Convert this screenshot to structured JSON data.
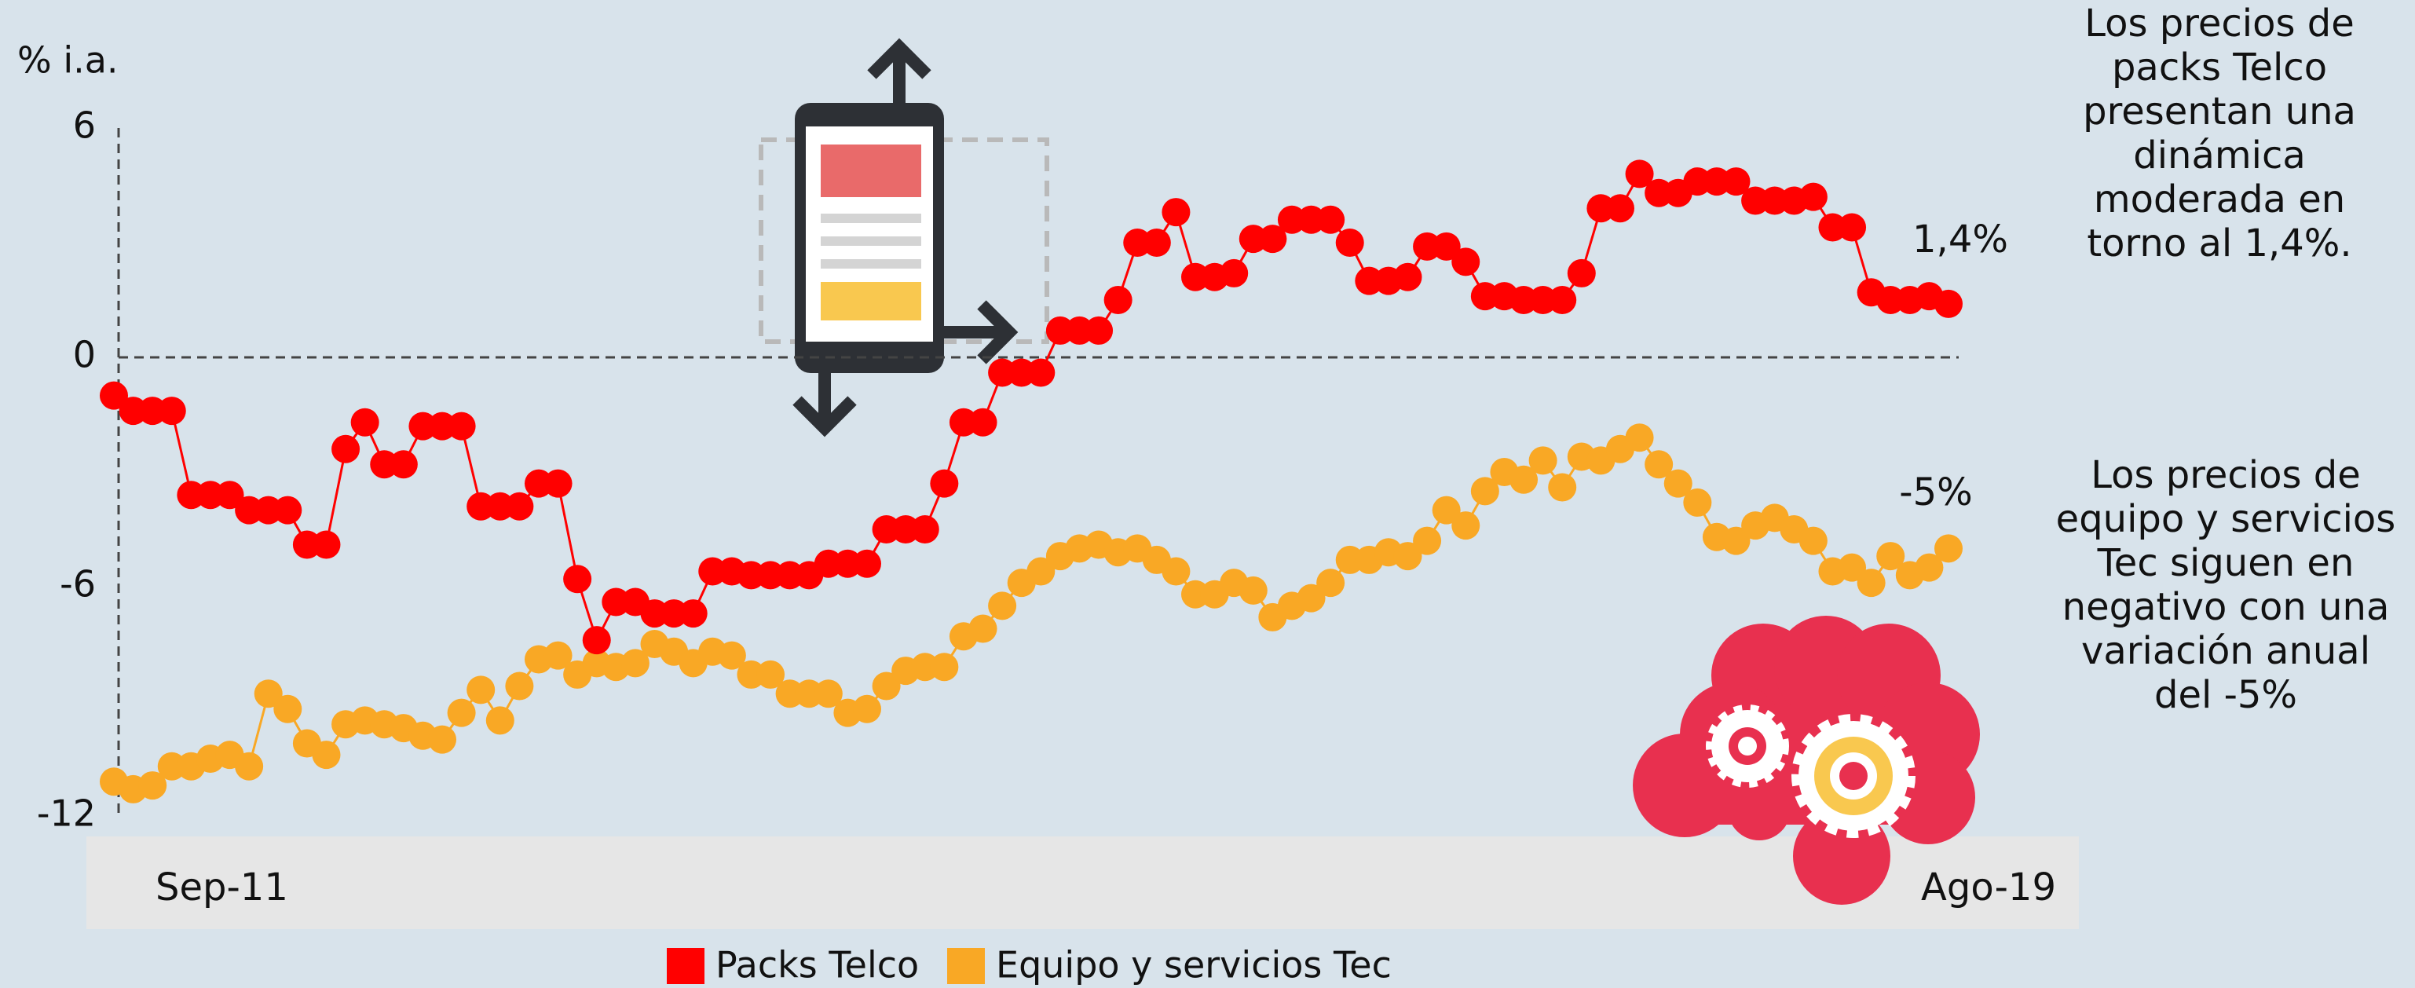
{
  "chart_data": {
    "type": "line",
    "y_axis_label": "% i.a.",
    "categories": [
      "Sep-11",
      null,
      null,
      null,
      null,
      null,
      null,
      null,
      null,
      null,
      null,
      null,
      null,
      null,
      null,
      null,
      null,
      null,
      null,
      null,
      null,
      null,
      null,
      null,
      null,
      null,
      null,
      null,
      null,
      null,
      null,
      null,
      null,
      null,
      null,
      null,
      null,
      null,
      null,
      null,
      null,
      null,
      null,
      null,
      null,
      null,
      null,
      null,
      null,
      null,
      null,
      null,
      null,
      null,
      null,
      null,
      null,
      null,
      null,
      null,
      null,
      null,
      null,
      null,
      null,
      null,
      null,
      null,
      null,
      null,
      null,
      null,
      null,
      null,
      null,
      null,
      null,
      null,
      null,
      null,
      null,
      null,
      null,
      null,
      null,
      null,
      null,
      null,
      null,
      null,
      null,
      null,
      null,
      null,
      null,
      "Ago-19"
    ],
    "series": [
      {
        "name": "Packs Telco",
        "color": "#ff0000",
        "values": [
          -1.0,
          -1.4,
          -1.4,
          -1.4,
          -3.6,
          -3.6,
          -3.6,
          -4.0,
          -4.0,
          -4.0,
          -4.9,
          -4.9,
          -2.4,
          -1.7,
          -2.8,
          -2.8,
          -1.8,
          -1.8,
          -1.8,
          -3.9,
          -3.9,
          -3.9,
          -3.3,
          -3.3,
          -5.8,
          -7.4,
          -6.4,
          -6.4,
          -6.7,
          -6.7,
          -6.7,
          -5.6,
          -5.6,
          -5.7,
          -5.7,
          -5.7,
          -5.7,
          -5.4,
          -5.4,
          -5.4,
          -4.5,
          -4.5,
          -4.5,
          -3.3,
          -1.7,
          -1.7,
          -0.4,
          -0.4,
          -0.4,
          0.7,
          0.7,
          0.7,
          1.5,
          3.0,
          3.0,
          3.8,
          2.1,
          2.1,
          2.2,
          3.1,
          3.1,
          3.6,
          3.6,
          3.6,
          3.0,
          2.0,
          2.0,
          2.1,
          2.9,
          2.9,
          2.5,
          1.6,
          1.6,
          1.5,
          1.5,
          1.5,
          2.2,
          3.9,
          3.9,
          4.8,
          4.3,
          4.3,
          4.6,
          4.6,
          4.6,
          4.1,
          4.1,
          4.1,
          4.2,
          3.4,
          3.4,
          1.7,
          1.5,
          1.5,
          1.6,
          1.4
        ]
      },
      {
        "name": "Equipo y servicios Tec",
        "color": "#f9a825",
        "values": [
          -11.1,
          -11.3,
          -11.2,
          -10.7,
          -10.7,
          -10.5,
          -10.4,
          -10.7,
          -8.8,
          -9.2,
          -10.1,
          -10.4,
          -9.6,
          -9.5,
          -9.6,
          -9.7,
          -9.9,
          -10.0,
          -9.3,
          -8.7,
          -9.5,
          -8.6,
          -7.9,
          -7.8,
          -8.3,
          -8.0,
          -8.1,
          -8.0,
          -7.5,
          -7.7,
          -8.0,
          -7.7,
          -7.8,
          -8.3,
          -8.3,
          -8.8,
          -8.8,
          -8.8,
          -9.3,
          -9.2,
          -8.6,
          -8.2,
          -8.1,
          -8.1,
          -7.3,
          -7.1,
          -6.5,
          -5.9,
          -5.6,
          -5.2,
          -5.0,
          -4.9,
          -5.1,
          -5.0,
          -5.3,
          -5.6,
          -6.2,
          -6.2,
          -5.9,
          -6.1,
          -6.8,
          -6.5,
          -6.3,
          -5.9,
          -5.3,
          -5.3,
          -5.1,
          -5.2,
          -4.8,
          -4.0,
          -4.4,
          -3.5,
          -3.0,
          -3.2,
          -2.7,
          -3.4,
          -2.6,
          -2.7,
          -2.4,
          -2.1,
          -2.8,
          -3.3,
          -3.8,
          -4.7,
          -4.8,
          -4.4,
          -4.2,
          -4.5,
          -4.8,
          -5.6,
          -5.5,
          -5.9,
          -5.2,
          -5.7,
          -5.5,
          -5.0
        ]
      }
    ],
    "end_labels": [
      "1,4%",
      "-5%"
    ],
    "annotations": [
      [
        "Los precios de",
        "packs Telco",
        "presentan una",
        "dinámica",
        "moderada en",
        "torno al 1,4%."
      ],
      [
        "Los precios de",
        "equipo y servicios",
        "Tec siguen en",
        "negativo con una",
        "variación anual",
        "del -5%"
      ]
    ],
    "ylim": [
      -12,
      6
    ],
    "yticks": [
      -12,
      -6,
      0,
      6
    ],
    "zero_line": true
  }
}
